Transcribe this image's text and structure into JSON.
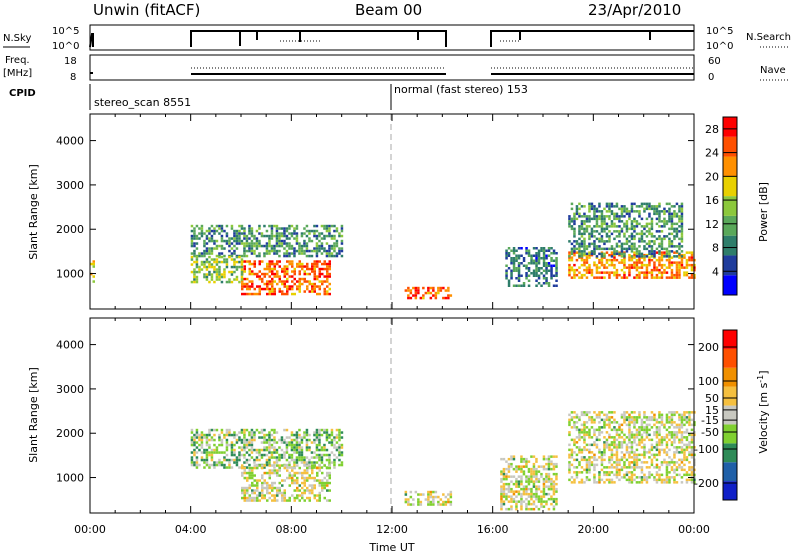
{
  "header": {
    "station": "Unwin (fitACF)",
    "beam": "Beam 00",
    "date": "23/Apr/2010"
  },
  "strip": {
    "nsky_label": "N.Sky",
    "freq_label_1": "Freq.",
    "freq_label_2": "[MHz]",
    "cpid_label": "CPID",
    "nsearch_label": "N.Search",
    "nave_label": "Nave",
    "left_top_1": "10^5",
    "left_bot_1": "10^0",
    "right_top_1": "10^5",
    "right_bot_1": "10^0",
    "left_top_2": "18",
    "left_bot_2": "8",
    "right_top_2": "60",
    "right_bot_2": "0",
    "cpid_1": "stereo_scan 8551",
    "cpid_2": "normal (fast stereo) 153"
  },
  "axes": {
    "ylabel": "Slant Range [km]",
    "xlabel": "Time UT"
  },
  "colorbars": {
    "power_label": "Power [dB]",
    "velocity_label_main": "Velocity [m s",
    "velocity_label_sup": "-1",
    "velocity_label_end": "]"
  },
  "colors": {
    "power_scale": [
      "#0000ff",
      "#1f3c9c",
      "#2e7d6a",
      "#5aa85a",
      "#8cc83c",
      "#e8d000",
      "#ff9000",
      "#ff5000",
      "#ff0000"
    ],
    "velocity_scale": [
      "#1020c8",
      "#2060a8",
      "#2e8b57",
      "#80d030",
      "#c8c8c0",
      "#f5c040",
      "#f09000",
      "#ff5000",
      "#ff0000"
    ]
  },
  "chart_data": [
    {
      "type": "heatmap",
      "title": "Power",
      "xlabel": "Time UT",
      "ylabel": "Slant Range [km]",
      "x_ticks": [
        "00:00",
        "04:00",
        "08:00",
        "12:00",
        "16:00",
        "20:00",
        "00:00"
      ],
      "xlim_hours": [
        0,
        24
      ],
      "y_ticks": [
        1000,
        2000,
        3000,
        4000
      ],
      "ylim": [
        200,
        4600
      ],
      "colorbar": {
        "label": "Power [dB]",
        "ticks": [
          4,
          8,
          12,
          16,
          20,
          24,
          28
        ],
        "range": [
          0,
          30
        ]
      },
      "regions": [
        {
          "t_start": 0.0,
          "t_end": 0.1,
          "r_min": 800,
          "r_max": 1300,
          "value": 18
        },
        {
          "t_start": 4.0,
          "t_end": 10.0,
          "r_min": 1400,
          "r_max": 2100,
          "value": 10
        },
        {
          "t_start": 6.0,
          "t_end": 9.5,
          "r_min": 550,
          "r_max": 1300,
          "value": 24
        },
        {
          "t_start": 4.0,
          "t_end": 6.0,
          "r_min": 800,
          "r_max": 1400,
          "value": 14
        },
        {
          "t_start": 12.5,
          "t_end": 14.3,
          "r_min": 450,
          "r_max": 700,
          "value": 24
        },
        {
          "t_start": 16.5,
          "t_end": 18.5,
          "r_min": 700,
          "r_max": 1600,
          "value": 8
        },
        {
          "t_start": 19.0,
          "t_end": 24.0,
          "r_min": 900,
          "r_max": 1500,
          "value": 22
        },
        {
          "t_start": 19.0,
          "t_end": 23.5,
          "r_min": 1400,
          "r_max": 2600,
          "value": 10
        }
      ]
    },
    {
      "type": "heatmap",
      "title": "Velocity",
      "xlabel": "Time UT",
      "ylabel": "Slant Range [km]",
      "x_ticks": [
        "00:00",
        "04:00",
        "08:00",
        "12:00",
        "16:00",
        "20:00",
        "00:00"
      ],
      "xlim_hours": [
        0,
        24
      ],
      "y_ticks": [
        1000,
        2000,
        3000,
        4000
      ],
      "ylim": [
        200,
        4600
      ],
      "colorbar": {
        "label": "Velocity [m s-1]",
        "ticks": [
          200,
          100,
          50,
          15,
          -15,
          -50,
          -100,
          -200
        ],
        "range": [
          -250,
          250
        ]
      },
      "regions": [
        {
          "t_start": 4.0,
          "t_end": 10.0,
          "r_min": 1200,
          "r_max": 2100,
          "value": -40
        },
        {
          "t_start": 6.0,
          "t_end": 9.5,
          "r_min": 500,
          "r_max": 1300,
          "value": 0
        },
        {
          "t_start": 12.5,
          "t_end": 14.3,
          "r_min": 400,
          "r_max": 700,
          "value": 0
        },
        {
          "t_start": 16.3,
          "t_end": 18.5,
          "r_min": 300,
          "r_max": 1500,
          "value": 0
        },
        {
          "t_start": 19.0,
          "t_end": 24.0,
          "r_min": 900,
          "r_max": 2500,
          "value": 0
        }
      ]
    }
  ]
}
